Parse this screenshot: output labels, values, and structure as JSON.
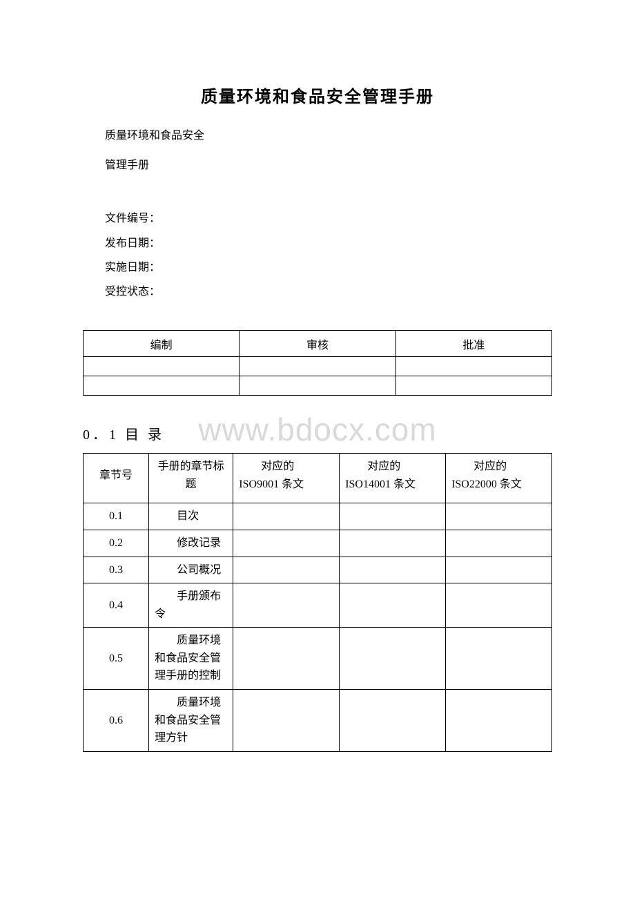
{
  "title": "质量环境和食品安全管理手册",
  "subtitle1": "质量环境和食品安全",
  "subtitle2": "管理手册",
  "meta": {
    "doc_no_label": "文件编号：",
    "issue_date_label": "发布日期：",
    "impl_date_label": "实施日期：",
    "control_state_label": "受控状态："
  },
  "sign": {
    "col1": "编制",
    "col2": "审核",
    "col3": "批准"
  },
  "section_heading": "0．1 目 录",
  "watermark": "www.bdocx.com",
  "toc": {
    "headers": {
      "chapter_no": "章节号",
      "chapter_title": "手册的章节标题",
      "iso9001": "对应的ISO9001 条文",
      "iso14001": "对应的ISO14001 条文",
      "iso22000": "对应的ISO22000 条文"
    },
    "rows": [
      {
        "no": "0.1",
        "title": "目次",
        "c1": "",
        "c2": "",
        "c3": ""
      },
      {
        "no": "0.2",
        "title": "修改记录",
        "c1": "",
        "c2": "",
        "c3": ""
      },
      {
        "no": "0.3",
        "title": "公司概况",
        "c1": "",
        "c2": "",
        "c3": ""
      },
      {
        "no": "0.4",
        "title": "手册颁布令",
        "c1": "",
        "c2": "",
        "c3": ""
      },
      {
        "no": "0.5",
        "title": "质量环境和食品安全管理手册的控制",
        "c1": "",
        "c2": "",
        "c3": ""
      },
      {
        "no": "0.6",
        "title": "质量环境和食品安全管理方针",
        "c1": "",
        "c2": "",
        "c3": ""
      }
    ]
  }
}
